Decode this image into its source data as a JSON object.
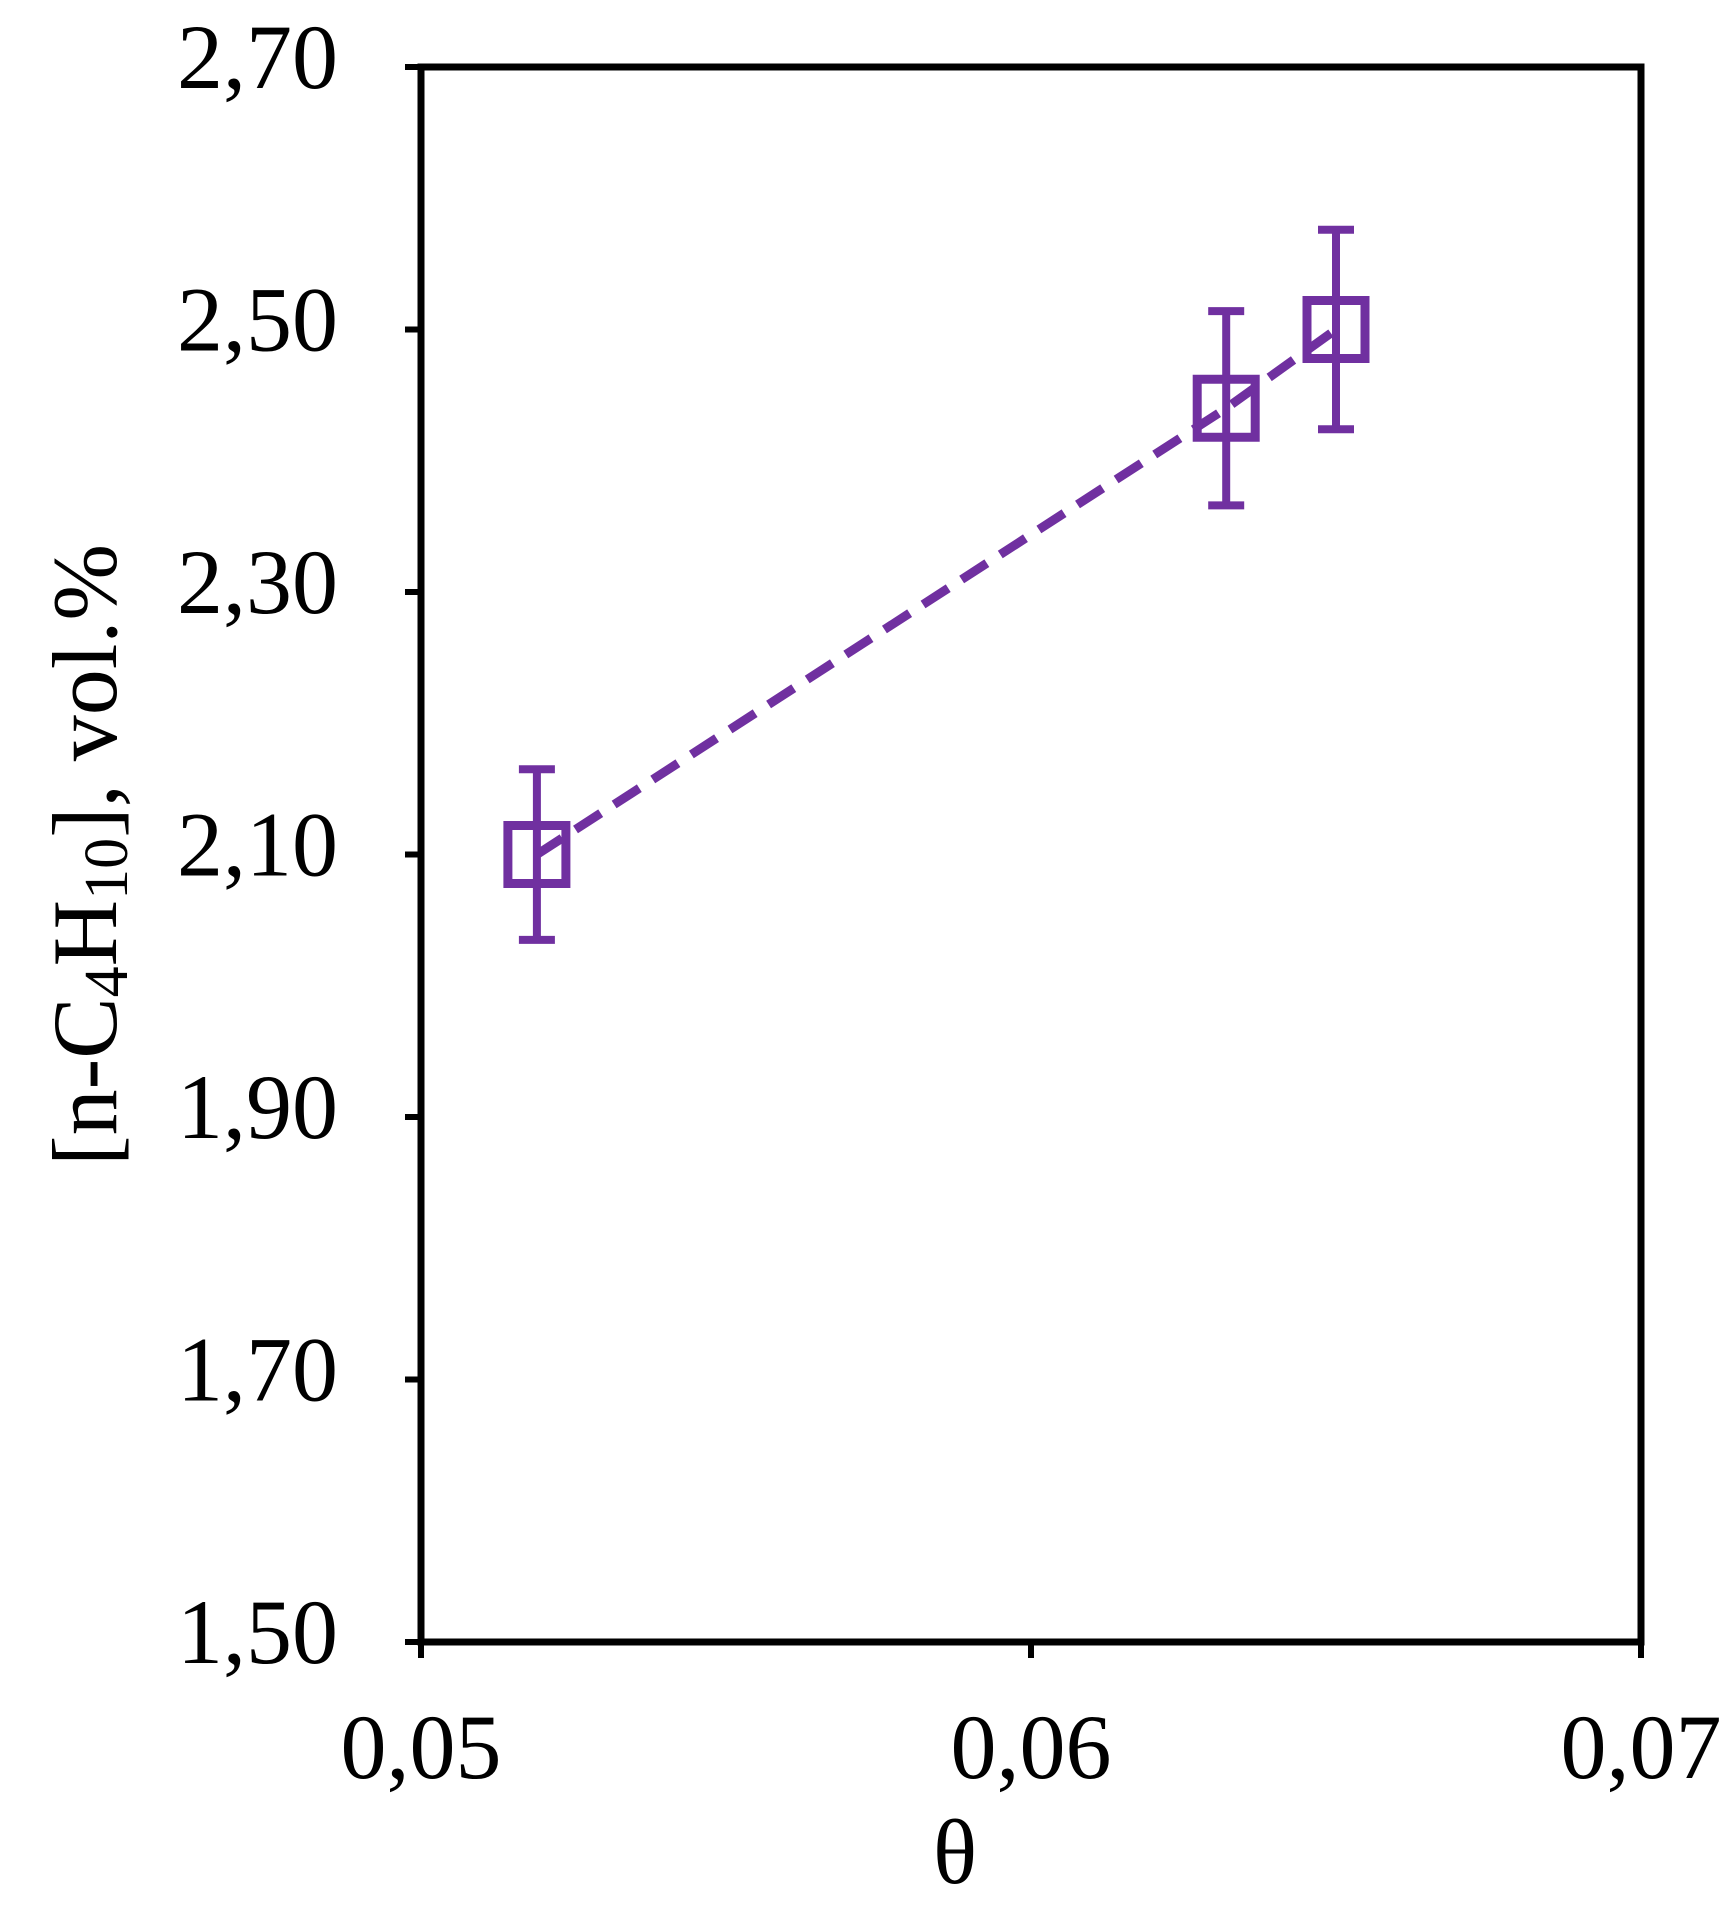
{
  "chart_data": {
    "type": "scatter",
    "xlabel": "θ",
    "ylabel": "[n-C4H10], vol.%",
    "series": [
      {
        "color": "#7030a0",
        "x": [
          0.0519,
          0.0632,
          0.065
        ],
        "values": [
          2.1,
          2.44,
          2.5
        ],
        "errors": [
          0.065,
          0.074,
          0.076
        ],
        "line": "dashed",
        "marker": "square"
      }
    ],
    "xlim": [
      0.05,
      0.07
    ],
    "xticks": [
      {
        "value": 0.05,
        "label": "0,05"
      },
      {
        "value": 0.06,
        "label": "0,06"
      },
      {
        "value": 0.07,
        "label": "0,07"
      }
    ],
    "ylim": [
      1.5,
      2.7
    ],
    "yticks": [
      {
        "value": 1.5,
        "label": "1,50"
      },
      {
        "value": 1.7,
        "label": "1,70"
      },
      {
        "value": 1.9,
        "label": "1,90"
      },
      {
        "value": 2.1,
        "label": "2,10"
      },
      {
        "value": 2.3,
        "label": "2,30"
      },
      {
        "value": 2.5,
        "label": "2,50"
      },
      {
        "value": 2.7,
        "label": "2,70"
      }
    ],
    "grid": false
  }
}
